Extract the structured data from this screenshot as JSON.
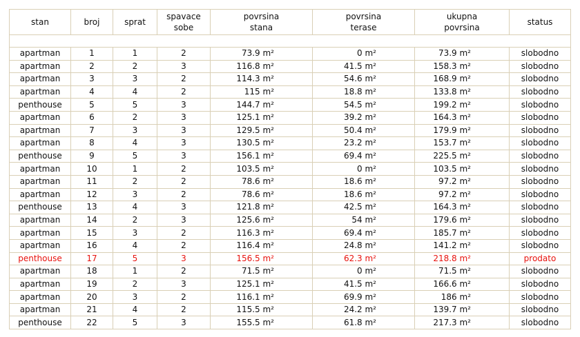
{
  "headers": [
    "stan",
    "broj",
    "sprat",
    "spavace\nsobe",
    "povrsina\nstana",
    "povrsina\nterase",
    "ukupna\npovrsina",
    "status"
  ],
  "unit": "m²",
  "sold_color": "#e8120c",
  "rows": [
    [
      "apartman",
      "1",
      "1",
      "2",
      "73.9 m²",
      "0 m²",
      "73.9 m²",
      "slobodno"
    ],
    [
      "apartman",
      "2",
      "2",
      "3",
      "116.8 m²",
      "41.5 m²",
      "158.3 m²",
      "slobodno"
    ],
    [
      "apartman",
      "3",
      "3",
      "2",
      "114.3 m²",
      "54.6 m²",
      "168.9 m²",
      "slobodno"
    ],
    [
      "apartman",
      "4",
      "4",
      "2",
      "115 m²",
      "18.8 m²",
      "133.8 m²",
      "slobodno"
    ],
    [
      "penthouse",
      "5",
      "5",
      "3",
      "144.7 m²",
      "54.5 m²",
      "199.2 m²",
      "slobodno"
    ],
    [
      "apartman",
      "6",
      "2",
      "3",
      "125.1 m²",
      "39.2 m²",
      "164.3 m²",
      "slobodno"
    ],
    [
      "apartman",
      "7",
      "3",
      "3",
      "129.5 m²",
      "50.4 m²",
      "179.9 m²",
      "slobodno"
    ],
    [
      "apartman",
      "8",
      "4",
      "3",
      "130.5 m²",
      "23.2 m²",
      "153.7 m²",
      "slobodno"
    ],
    [
      "penthouse",
      "9",
      "5",
      "3",
      "156.1 m²",
      "69.4 m²",
      "225.5 m²",
      "slobodno"
    ],
    [
      "apartman",
      "10",
      "1",
      "2",
      "103.5 m²",
      "0 m²",
      "103.5 m²",
      "slobodno"
    ],
    [
      "apartman",
      "11",
      "2",
      "2",
      "78.6 m²",
      "18.6 m²",
      "97.2 m²",
      "slobodno"
    ],
    [
      "apartman",
      "12",
      "3",
      "2",
      "78.6 m²",
      "18.6 m²",
      "97.2 m²",
      "slobodno"
    ],
    [
      "penthouse",
      "13",
      "4",
      "3",
      "121.8 m²",
      "42.5 m²",
      "164.3 m²",
      "slobodno"
    ],
    [
      "apartman",
      "14",
      "2",
      "3",
      "125.6 m²",
      "54 m²",
      "179.6 m²",
      "slobodno"
    ],
    [
      "apartman",
      "15",
      "3",
      "2",
      "116.3 m²",
      "69.4 m²",
      "185.7 m²",
      "slobodno"
    ],
    [
      "apartman",
      "16",
      "4",
      "2",
      "116.4 m²",
      "24.8 m²",
      "141.2 m²",
      "slobodno"
    ],
    [
      "penthouse",
      "17",
      "5",
      "3",
      "156.5 m²",
      "62.3 m²",
      "218.8 m²",
      "prodato"
    ],
    [
      "apartman",
      "18",
      "1",
      "2",
      "71.5 m²",
      "0 m²",
      "71.5 m²",
      "slobodno"
    ],
    [
      "apartman",
      "19",
      "2",
      "3",
      "125.1 m²",
      "41.5 m²",
      "166.6 m²",
      "slobodno"
    ],
    [
      "apartman",
      "20",
      "3",
      "2",
      "116.1 m²",
      "69.9 m²",
      "186 m²",
      "slobodno"
    ],
    [
      "apartman",
      "21",
      "4",
      "2",
      "115.5 m²",
      "24.2 m²",
      "139.7 m²",
      "slobodno"
    ],
    [
      "penthouse",
      "22",
      "5",
      "3",
      "155.5 m²",
      "61.8 m²",
      "217.3 m²",
      "slobodno"
    ]
  ]
}
